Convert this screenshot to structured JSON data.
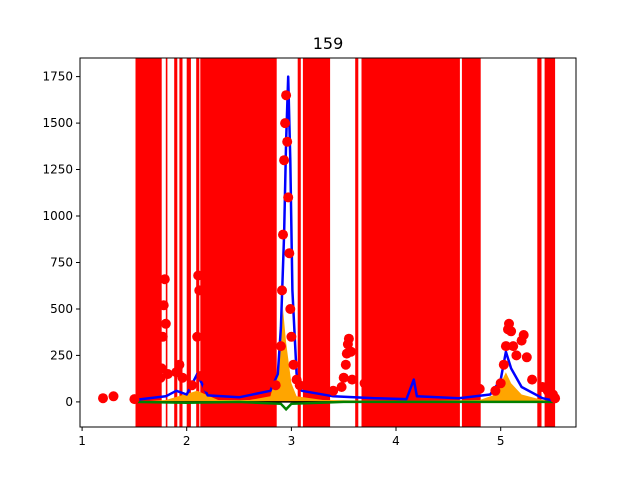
{
  "chart_data": {
    "type": "scatter",
    "title": "159",
    "xlabel": "",
    "ylabel": "",
    "xlim": [
      0.98,
      5.72
    ],
    "ylim": [
      -135,
      1850
    ],
    "x_ticks": [
      1,
      2,
      3,
      4,
      5
    ],
    "y_ticks": [
      0,
      250,
      500,
      750,
      1000,
      1250,
      1500,
      1750
    ],
    "grid": false,
    "legend": "none",
    "colors": {
      "bands": "#ff0000",
      "points": "#ff0000",
      "blue_series": "#0000ff",
      "orange_series": "#ffa500",
      "green_series": "#008000",
      "baseline": "#000000"
    },
    "vertical_bands": [
      [
        1.51,
        1.76
      ],
      [
        1.8,
        1.815
      ],
      [
        1.88,
        1.91
      ],
      [
        1.93,
        1.96
      ],
      [
        2.0,
        2.04
      ],
      [
        2.09,
        2.12
      ],
      [
        2.13,
        2.86
      ],
      [
        3.06,
        3.09
      ],
      [
        3.11,
        3.37
      ],
      [
        3.61,
        3.64
      ],
      [
        3.67,
        4.61
      ],
      [
        4.63,
        4.81
      ],
      [
        5.35,
        5.39
      ],
      [
        5.42,
        5.52
      ]
    ],
    "red_points": [
      [
        1.2,
        20
      ],
      [
        1.3,
        30
      ],
      [
        1.5,
        15
      ],
      [
        1.75,
        130
      ],
      [
        1.76,
        180
      ],
      [
        1.77,
        350
      ],
      [
        1.78,
        520
      ],
      [
        1.79,
        660
      ],
      [
        1.8,
        420
      ],
      [
        1.82,
        150
      ],
      [
        1.9,
        160
      ],
      [
        1.93,
        200
      ],
      [
        1.96,
        130
      ],
      [
        2.05,
        90
      ],
      [
        2.1,
        350
      ],
      [
        2.11,
        680
      ],
      [
        2.12,
        600
      ],
      [
        2.14,
        140
      ],
      [
        2.2,
        80
      ],
      [
        2.4,
        90
      ],
      [
        2.6,
        120
      ],
      [
        2.75,
        120
      ],
      [
        2.85,
        90
      ],
      [
        2.9,
        300
      ],
      [
        2.91,
        600
      ],
      [
        2.92,
        900
      ],
      [
        2.93,
        1300
      ],
      [
        2.94,
        1500
      ],
      [
        2.95,
        1650
      ],
      [
        2.96,
        1400
      ],
      [
        2.97,
        1100
      ],
      [
        2.98,
        800
      ],
      [
        2.99,
        500
      ],
      [
        3.0,
        350
      ],
      [
        3.02,
        200
      ],
      [
        3.05,
        120
      ],
      [
        3.08,
        90
      ],
      [
        3.4,
        60
      ],
      [
        3.48,
        80
      ],
      [
        3.5,
        130
      ],
      [
        3.52,
        200
      ],
      [
        3.53,
        260
      ],
      [
        3.54,
        310
      ],
      [
        3.55,
        340
      ],
      [
        3.57,
        270
      ],
      [
        3.58,
        120
      ],
      [
        3.7,
        100
      ],
      [
        4.0,
        110
      ],
      [
        4.4,
        80
      ],
      [
        4.8,
        70
      ],
      [
        4.95,
        60
      ],
      [
        5.0,
        100
      ],
      [
        5.03,
        200
      ],
      [
        5.05,
        300
      ],
      [
        5.07,
        390
      ],
      [
        5.08,
        420
      ],
      [
        5.1,
        380
      ],
      [
        5.12,
        300
      ],
      [
        5.15,
        250
      ],
      [
        5.2,
        330
      ],
      [
        5.22,
        360
      ],
      [
        5.25,
        240
      ],
      [
        5.3,
        120
      ],
      [
        5.4,
        80
      ],
      [
        5.45,
        60
      ],
      [
        5.5,
        40
      ],
      [
        5.52,
        20
      ]
    ],
    "blue_line": [
      [
        1.5,
        10
      ],
      [
        1.8,
        30
      ],
      [
        1.9,
        60
      ],
      [
        2.0,
        40
      ],
      [
        2.1,
        150
      ],
      [
        2.2,
        35
      ],
      [
        2.5,
        25
      ],
      [
        2.8,
        60
      ],
      [
        2.87,
        150
      ],
      [
        2.9,
        400
      ],
      [
        2.93,
        900
      ],
      [
        2.95,
        1400
      ],
      [
        2.97,
        1750
      ],
      [
        2.99,
        1300
      ],
      [
        3.01,
        600
      ],
      [
        3.05,
        150
      ],
      [
        3.1,
        60
      ],
      [
        3.4,
        30
      ],
      [
        3.8,
        20
      ],
      [
        4.1,
        15
      ],
      [
        4.17,
        120
      ],
      [
        4.2,
        30
      ],
      [
        4.6,
        20
      ],
      [
        4.9,
        40
      ],
      [
        5.0,
        120
      ],
      [
        5.05,
        270
      ],
      [
        5.1,
        180
      ],
      [
        5.2,
        80
      ],
      [
        5.4,
        20
      ],
      [
        5.52,
        5
      ]
    ],
    "orange_area": [
      [
        1.5,
        0
      ],
      [
        1.8,
        10
      ],
      [
        2.1,
        60
      ],
      [
        2.3,
        10
      ],
      [
        2.6,
        10
      ],
      [
        2.8,
        30
      ],
      [
        2.88,
        200
      ],
      [
        2.92,
        500
      ],
      [
        2.95,
        320
      ],
      [
        3.0,
        100
      ],
      [
        3.05,
        30
      ],
      [
        3.3,
        10
      ],
      [
        4.0,
        5
      ],
      [
        4.8,
        10
      ],
      [
        4.95,
        40
      ],
      [
        5.05,
        160
      ],
      [
        5.1,
        100
      ],
      [
        5.2,
        40
      ],
      [
        5.4,
        10
      ],
      [
        5.52,
        0
      ]
    ],
    "green_line": [
      [
        1.5,
        0
      ],
      [
        2.0,
        -5
      ],
      [
        2.5,
        0
      ],
      [
        2.9,
        -10
      ],
      [
        2.95,
        -40
      ],
      [
        3.0,
        -10
      ],
      [
        3.5,
        0
      ],
      [
        4.0,
        0
      ],
      [
        4.5,
        0
      ],
      [
        5.0,
        0
      ],
      [
        5.52,
        0
      ]
    ]
  }
}
